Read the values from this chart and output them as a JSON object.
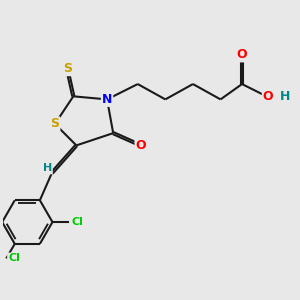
{
  "bg_color": "#e8e8e8",
  "atom_colors": {
    "S": "#c8a000",
    "N": "#0000ff",
    "O": "#ff0000",
    "Cl": "#00cc00",
    "H": "#008888",
    "C": "#000000"
  },
  "bond_color": "#1a1a1a",
  "bond_width": 1.5
}
